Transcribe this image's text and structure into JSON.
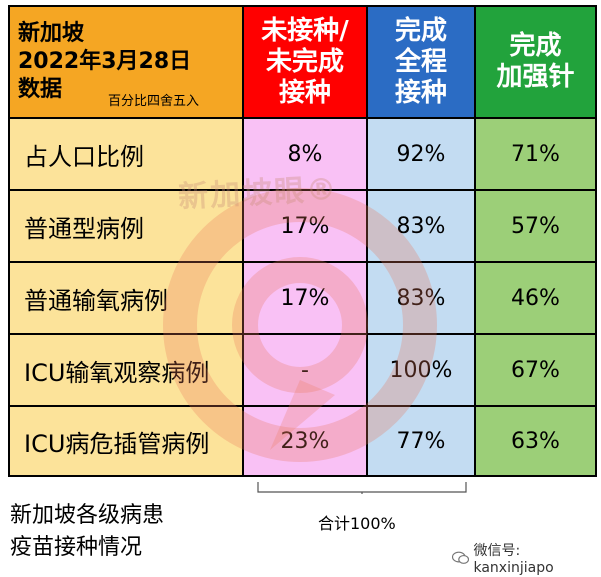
{
  "header": {
    "title_line1": "新加坡",
    "title_line2": "2022年3月28日",
    "title_line3": "数据",
    "rounding_note": "百分比四舍五入",
    "col_unvaccinated": [
      "未接种/",
      "未完成",
      "接种"
    ],
    "col_full": [
      "完成",
      "全程",
      "接种"
    ],
    "col_booster": [
      "完成",
      "加强针"
    ]
  },
  "rows": [
    {
      "label": "占人口比例",
      "unvaccinated": "8%",
      "full": "92%",
      "booster": "71%"
    },
    {
      "label": "普通型病例",
      "unvaccinated": "17%",
      "full": "83%",
      "booster": "57%"
    },
    {
      "label": "普通输氧病例",
      "unvaccinated": "17%",
      "full": "83%",
      "booster": "46%"
    },
    {
      "label": "ICU输氧观察病例",
      "unvaccinated": "-",
      "full": "100%",
      "booster": "67%"
    },
    {
      "label": "ICU病危插管病例",
      "unvaccinated": "23%",
      "full": "77%",
      "booster": "63%"
    }
  ],
  "caption": [
    "新加坡各级病患",
    "疫苗接种情况"
  ],
  "total_note": "合计100%",
  "watermark_text": "新加坡眼®",
  "wechat_text": "微信号: kanxinjiapo",
  "colors": {
    "orange": "#f5a623",
    "red": "#ff0000",
    "blue": "#2b6cc4",
    "green": "#22a33c",
    "cell_pink": "#f9c1f5",
    "cell_blue": "#c3dcf2",
    "cell_green": "#9ccf78",
    "cell_yellow": "#fce39a"
  }
}
